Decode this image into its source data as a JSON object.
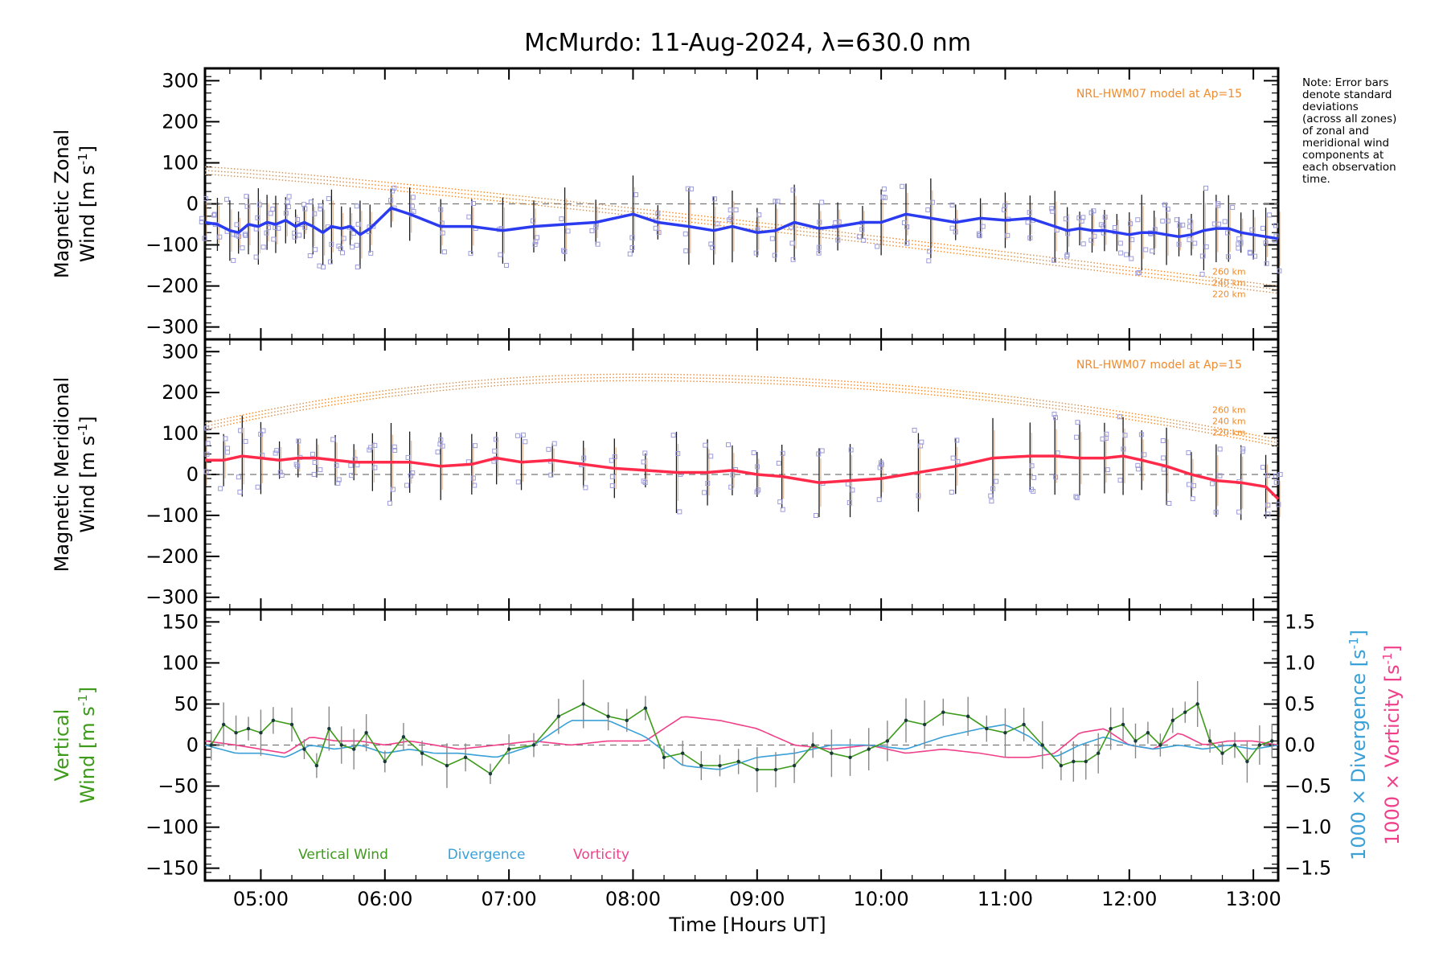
{
  "title": "McMurdo: 11-Aug-2024, λ=630.0 nm",
  "note": "Note: Error bars\ndenote standard\ndeviations\n(across all zones)\nof zonal and\nmeridional wind\ncomponents at\neach observation\ntime.",
  "xaxis": {
    "label": "Time [Hours UT]",
    "ticks": [
      "05:00",
      "06:00",
      "07:00",
      "08:00",
      "09:00",
      "10:00",
      "11:00",
      "12:00",
      "13:00"
    ],
    "range_hours": [
      4.55,
      13.2
    ]
  },
  "panels": {
    "zonal": {
      "ylabel1": "Magnetic Zonal",
      "ylabel2": "Wind [m s",
      "ylabel2_sup": "-1",
      "ylabel2_end": "]",
      "yticks": [
        "300",
        "200",
        "100",
        "0",
        "−100",
        "−200",
        "−300"
      ],
      "model_label": "NRL-HWM07 model at Ap=15",
      "alt_labels": [
        "260 km",
        "240 km",
        "220 km"
      ]
    },
    "meridional": {
      "ylabel1": "Magnetic Meridional",
      "ylabel2": "Wind [m s",
      "ylabel2_sup": "-1",
      "ylabel2_end": "]",
      "yticks": [
        "300",
        "200",
        "100",
        "0",
        "−100",
        "−200",
        "−300"
      ],
      "model_label": "NRL-HWM07 model at Ap=15",
      "alt_labels": [
        "260 km",
        "240 km",
        "220 km"
      ]
    },
    "vertical": {
      "ylabel1": "Vertical",
      "ylabel2": "Wind [m s",
      "ylabel2_sup": "-1",
      "ylabel2_end": "]",
      "yticks": [
        "150",
        "100",
        "50",
        "0",
        "−50",
        "−100",
        "−150"
      ],
      "right_ticks": [
        "1.5",
        "1.0",
        "0.5",
        "0.0",
        "−0.5",
        "−1.0",
        "−1.5"
      ],
      "right_label1": "1000 × Divergence [s",
      "right_label2": "1000 × Vorticity [s",
      "right_sup": "-1",
      "right_end": "]",
      "legend": [
        "Vertical Wind",
        "Divergence",
        "Vorticity"
      ]
    }
  },
  "colors": {
    "zonal": "#2b3bf0",
    "meridional": "#ff2a4a",
    "vertical": "#3d9a1a",
    "divergence": "#3aa0d8",
    "vorticity": "#f0408a",
    "model": "#f08a2a",
    "zone_markers": "#9b9bdc"
  },
  "chart_data": [
    {
      "type": "line",
      "title": "McMurdo: 11-Aug-2024, λ=630.0 nm",
      "xlabel": "Time [Hours UT]",
      "ylabel": "Magnetic Zonal Wind [m s-1]",
      "ylim": [
        -330,
        330
      ],
      "series": [
        {
          "x": [
            4.55,
            4.65,
            4.75,
            4.82,
            4.9,
            4.98,
            5.05,
            5.12,
            5.2,
            5.28,
            5.35,
            5.42,
            5.5,
            5.57,
            5.65,
            5.72,
            5.8,
            5.88,
            6.05,
            6.2,
            6.45,
            6.7,
            6.95,
            7.2,
            7.45,
            7.7,
            8.0,
            8.2,
            8.45,
            8.65,
            8.8,
            9.0,
            9.15,
            9.3,
            9.5,
            9.65,
            9.85,
            10.0,
            10.2,
            10.4,
            10.6,
            10.8,
            11.0,
            11.2,
            11.4,
            11.5,
            11.6,
            11.7,
            11.8,
            11.9,
            12.0,
            12.1,
            12.2,
            12.3,
            12.4,
            12.5,
            12.6,
            12.7,
            12.8,
            12.9,
            13.0,
            13.1,
            13.2
          ],
          "values": [
            -45,
            -50,
            -65,
            -70,
            -50,
            -55,
            -45,
            -50,
            -40,
            -55,
            -45,
            -55,
            -70,
            -55,
            -60,
            -55,
            -75,
            -60,
            -10,
            -25,
            -55,
            -55,
            -65,
            -55,
            -50,
            -45,
            -25,
            -45,
            -55,
            -65,
            -55,
            -70,
            -65,
            -45,
            -60,
            -55,
            -45,
            -45,
            -25,
            -35,
            -45,
            -35,
            -40,
            -35,
            -55,
            -65,
            -60,
            -65,
            -65,
            -70,
            -75,
            -70,
            -70,
            -75,
            -80,
            -75,
            -65,
            -60,
            -60,
            -70,
            -75,
            -80,
            -85
          ]
        }
      ]
    },
    {
      "type": "line",
      "xlabel": "Time [Hours UT]",
      "ylabel": "Magnetic Meridional Wind [m s-1]",
      "ylim": [
        -330,
        330
      ],
      "series": [
        {
          "x": [
            4.55,
            4.7,
            4.85,
            5.0,
            5.15,
            5.3,
            5.45,
            5.6,
            5.75,
            5.9,
            6.05,
            6.2,
            6.45,
            6.7,
            6.9,
            7.1,
            7.35,
            7.6,
            7.85,
            8.1,
            8.35,
            8.6,
            8.8,
            9.0,
            9.2,
            9.5,
            9.75,
            10.0,
            10.3,
            10.6,
            10.9,
            11.2,
            11.4,
            11.6,
            11.8,
            11.95,
            12.1,
            12.3,
            12.5,
            12.7,
            12.9,
            13.1,
            13.2
          ],
          "values": [
            35,
            35,
            45,
            40,
            35,
            40,
            40,
            35,
            30,
            30,
            30,
            30,
            20,
            25,
            40,
            30,
            35,
            25,
            15,
            10,
            5,
            5,
            10,
            0,
            -5,
            -20,
            -15,
            -10,
            5,
            20,
            40,
            45,
            45,
            40,
            40,
            45,
            35,
            20,
            0,
            -15,
            -20,
            -30,
            -60
          ]
        }
      ]
    },
    {
      "type": "line",
      "xlabel": "Time [Hours UT]",
      "ylabel": "Vertical Wind [m s-1]",
      "ylim": [
        -165,
        165
      ],
      "y2label": "1000 × Divergence [s-1] / 1000 × Vorticity [s-1]",
      "y2lim": [
        -1.65,
        1.65
      ],
      "series": [
        {
          "name": "Vertical Wind",
          "axis": "left",
          "x": [
            4.6,
            4.7,
            4.8,
            4.9,
            5.0,
            5.1,
            5.25,
            5.35,
            5.45,
            5.55,
            5.65,
            5.75,
            5.85,
            6.0,
            6.15,
            6.3,
            6.5,
            6.65,
            6.85,
            7.0,
            7.2,
            7.4,
            7.6,
            7.8,
            7.95,
            8.1,
            8.25,
            8.4,
            8.55,
            8.7,
            8.85,
            9.0,
            9.15,
            9.3,
            9.45,
            9.6,
            9.75,
            9.9,
            10.05,
            10.2,
            10.35,
            10.5,
            10.7,
            10.85,
            11.0,
            11.15,
            11.3,
            11.45,
            11.55,
            11.65,
            11.75,
            11.85,
            11.95,
            12.05,
            12.15,
            12.25,
            12.35,
            12.45,
            12.55,
            12.65,
            12.75,
            12.85,
            12.95,
            13.05,
            13.15
          ],
          "values": [
            0,
            25,
            15,
            20,
            15,
            30,
            25,
            -5,
            -25,
            20,
            0,
            -5,
            15,
            -20,
            10,
            -10,
            -25,
            -15,
            -35,
            -5,
            0,
            35,
            50,
            35,
            30,
            45,
            -15,
            -10,
            -25,
            -25,
            -20,
            -30,
            -30,
            -25,
            0,
            -10,
            -15,
            -5,
            5,
            30,
            25,
            40,
            35,
            20,
            15,
            25,
            0,
            -25,
            -20,
            -20,
            -10,
            20,
            25,
            5,
            15,
            0,
            30,
            40,
            50,
            5,
            -10,
            0,
            -20,
            0,
            5
          ]
        },
        {
          "name": "Divergence",
          "axis": "right",
          "x": [
            4.55,
            4.8,
            5.0,
            5.2,
            5.4,
            5.6,
            5.8,
            6.0,
            6.2,
            6.4,
            6.6,
            6.9,
            7.2,
            7.5,
            7.8,
            8.1,
            8.4,
            8.7,
            9.0,
            9.3,
            9.6,
            9.9,
            10.2,
            10.5,
            10.8,
            11.0,
            11.2,
            11.4,
            11.6,
            11.8,
            12.0,
            12.2,
            12.4,
            12.6,
            12.8,
            13.0,
            13.2
          ],
          "values": [
            0.0,
            -0.1,
            -0.1,
            -0.15,
            0.0,
            -0.05,
            0.0,
            -0.1,
            -0.05,
            -0.1,
            -0.1,
            -0.15,
            0.0,
            0.3,
            0.3,
            0.1,
            -0.25,
            -0.3,
            -0.15,
            -0.1,
            0.0,
            0.0,
            -0.05,
            0.1,
            0.2,
            0.25,
            0.1,
            -0.15,
            0.0,
            0.1,
            0.0,
            -0.05,
            0.0,
            -0.05,
            0.0,
            -0.05,
            0.0
          ]
        },
        {
          "name": "Vorticity",
          "axis": "right",
          "x": [
            4.55,
            4.8,
            5.0,
            5.2,
            5.4,
            5.6,
            5.8,
            6.0,
            6.2,
            6.4,
            6.6,
            6.9,
            7.2,
            7.5,
            7.8,
            8.1,
            8.4,
            8.7,
            9.0,
            9.3,
            9.6,
            9.9,
            10.2,
            10.5,
            10.8,
            11.0,
            11.2,
            11.4,
            11.6,
            11.8,
            12.0,
            12.2,
            12.4,
            12.6,
            12.8,
            13.0,
            13.2
          ],
          "values": [
            0.05,
            0.0,
            -0.05,
            -0.1,
            0.1,
            0.05,
            0.05,
            0.0,
            0.05,
            0.0,
            -0.05,
            0.0,
            0.05,
            0.0,
            0.05,
            0.05,
            0.35,
            0.3,
            0.2,
            0.0,
            -0.05,
            0.0,
            -0.1,
            -0.05,
            -0.1,
            -0.15,
            -0.15,
            -0.1,
            0.15,
            0.2,
            0.0,
            -0.05,
            0.15,
            0.0,
            0.05,
            0.05,
            0.0
          ]
        }
      ]
    }
  ]
}
